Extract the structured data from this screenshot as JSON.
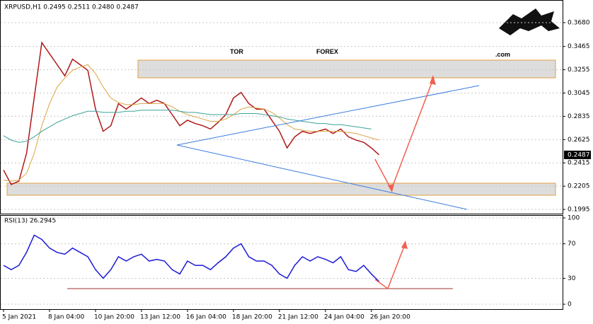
{
  "chart_data": [
    {
      "type": "line",
      "title": "XRPUSD,H1 0.2495 0.2511 0.2480 0.2487",
      "watermark": [
        "TOR",
        "FOREX",
        ".com"
      ],
      "categories": [
        "5 Jan 2021",
        null,
        null,
        null,
        null,
        null,
        "8 Jan 04:00",
        null,
        null,
        null,
        null,
        null,
        "10 Jan 20:00",
        null,
        null,
        null,
        null,
        null,
        "13 Jan 12:00",
        null,
        null,
        null,
        null,
        null,
        "16 Jan 04:00",
        null,
        null,
        null,
        null,
        null,
        "18 Jan 20:00",
        null,
        null,
        null,
        null,
        null,
        "21 Jan 12:00",
        null,
        null,
        null,
        null,
        null,
        "24 Jan 04:00",
        null,
        null,
        null,
        null,
        null,
        "26 Jan 20:00",
        null
      ],
      "series": [
        {
          "color": "#b01818",
          "values": [
            0.235,
            0.222,
            0.225,
            0.25,
            0.3,
            0.35,
            0.34,
            0.33,
            0.32,
            0.335,
            0.33,
            0.325,
            0.29,
            0.27,
            0.275,
            0.295,
            0.29,
            0.295,
            0.3,
            0.295,
            0.298,
            0.295,
            0.285,
            0.275,
            0.28,
            0.277,
            0.275,
            0.272,
            0.278,
            0.285,
            0.3,
            0.305,
            0.295,
            0.29,
            0.29,
            0.28,
            0.27,
            0.255,
            0.265,
            0.27,
            0.268,
            0.27,
            0.272,
            0.268,
            0.272,
            0.265,
            0.262,
            0.26,
            0.255,
            0.2487
          ]
        },
        {
          "color": "#d9a441",
          "values": [
            0.226,
            0.225,
            0.226,
            0.232,
            0.25,
            0.275,
            0.295,
            0.31,
            0.318,
            0.325,
            0.328,
            0.33,
            0.322,
            0.31,
            0.3,
            0.296,
            0.294,
            0.294,
            0.295,
            0.295,
            0.295,
            0.295,
            0.292,
            0.288,
            0.285,
            0.283,
            0.281,
            0.279,
            0.279,
            0.281,
            0.285,
            0.29,
            0.292,
            0.291,
            0.29,
            0.287,
            0.282,
            0.276,
            0.272,
            0.271,
            0.27,
            0.27,
            0.27,
            0.27,
            0.27,
            0.269,
            0.268,
            0.266,
            0.264,
            0.262
          ]
        },
        {
          "color": "#3aa39a",
          "values": [
            0.266,
            0.262,
            0.26,
            0.261,
            0.265,
            0.27,
            0.274,
            0.278,
            0.281,
            0.284,
            0.286,
            0.288,
            0.288,
            0.287,
            0.287,
            0.287,
            0.288,
            0.288,
            0.289,
            0.289,
            0.289,
            0.289,
            0.289,
            0.288,
            0.287,
            0.287,
            0.286,
            0.285,
            0.285,
            0.285,
            0.285,
            0.286,
            0.286,
            0.286,
            0.285,
            0.284,
            0.283,
            0.281,
            0.28,
            0.279,
            0.278,
            0.277,
            0.277,
            0.276,
            0.276,
            0.275,
            0.274,
            0.273,
            0.272,
            null
          ]
        }
      ],
      "ylim": [
        0.1957,
        0.3884
      ],
      "yticks": [
        {
          "value": 0.368,
          "label": "0.3680"
        },
        0.3465,
        0.3255,
        0.3045,
        0.2835,
        0.2625,
        0.2415,
        0.2205,
        0.1995
      ],
      "last_price": 0.2487,
      "grid": true
    },
    {
      "type": "line",
      "title": "RSI(13) 26.2945",
      "series": [
        {
          "color": "#1a1ad6",
          "values": [
            45,
            40,
            45,
            60,
            80,
            75,
            65,
            60,
            58,
            65,
            60,
            55,
            40,
            30,
            40,
            55,
            50,
            55,
            58,
            50,
            52,
            50,
            40,
            35,
            50,
            45,
            45,
            40,
            48,
            55,
            65,
            70,
            55,
            50,
            50,
            45,
            35,
            30,
            45,
            55,
            50,
            55,
            52,
            48,
            55,
            40,
            38,
            45,
            35,
            26.3
          ]
        }
      ],
      "ylim": [
        -5.7,
        103.3
      ],
      "yticks": [
        0,
        30,
        70,
        100
      ],
      "grid": true
    }
  ]
}
